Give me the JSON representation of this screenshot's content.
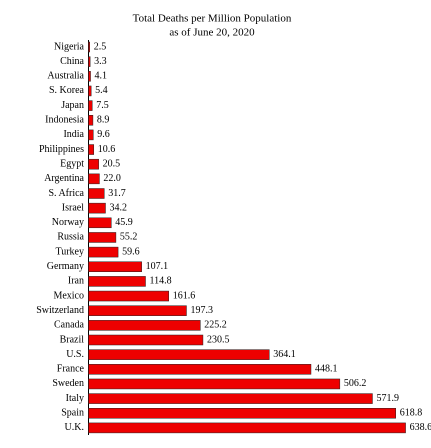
{
  "chart_data": {
    "type": "bar",
    "orientation": "horizontal",
    "title": "Total Deaths per Million Population",
    "subtitle": "as of June 20, 2020",
    "categories": [
      "Nigeria",
      "China",
      "Australia",
      "S. Korea",
      "Japan",
      "Indonesia",
      "India",
      "Philippines",
      "Egypt",
      "Argentina",
      "S. Africa",
      "Israel",
      "Norway",
      "Russia",
      "Turkey",
      "Germany",
      "Iran",
      "Mexico",
      "Switzerland",
      "Canada",
      "Brazil",
      "U.S.",
      "France",
      "Sweden",
      "Italy",
      "Spain",
      "U.K."
    ],
    "values": [
      2.5,
      3.3,
      4.1,
      5.4,
      7.5,
      8.9,
      9.6,
      10.6,
      20.5,
      22.0,
      31.7,
      34.2,
      45.9,
      55.2,
      59.6,
      107.1,
      114.8,
      161.6,
      197.3,
      225.2,
      230.5,
      364.1,
      448.1,
      506.2,
      571.9,
      618.8,
      638.6
    ],
    "value_labels": [
      "2.5",
      "3.3",
      "4.1",
      "5.4",
      "7.5",
      "8.9",
      "9.6",
      "10.6",
      "20.5",
      "22.0",
      "31.7",
      "34.2",
      "45.9",
      "55.2",
      "59.6",
      "107.1",
      "114.8",
      "161.6",
      "197.3",
      "225.2",
      "230.5",
      "364.1",
      "448.1",
      "506.2",
      "571.9",
      "618.8",
      "638.6"
    ],
    "color": "#ee0000"
  }
}
